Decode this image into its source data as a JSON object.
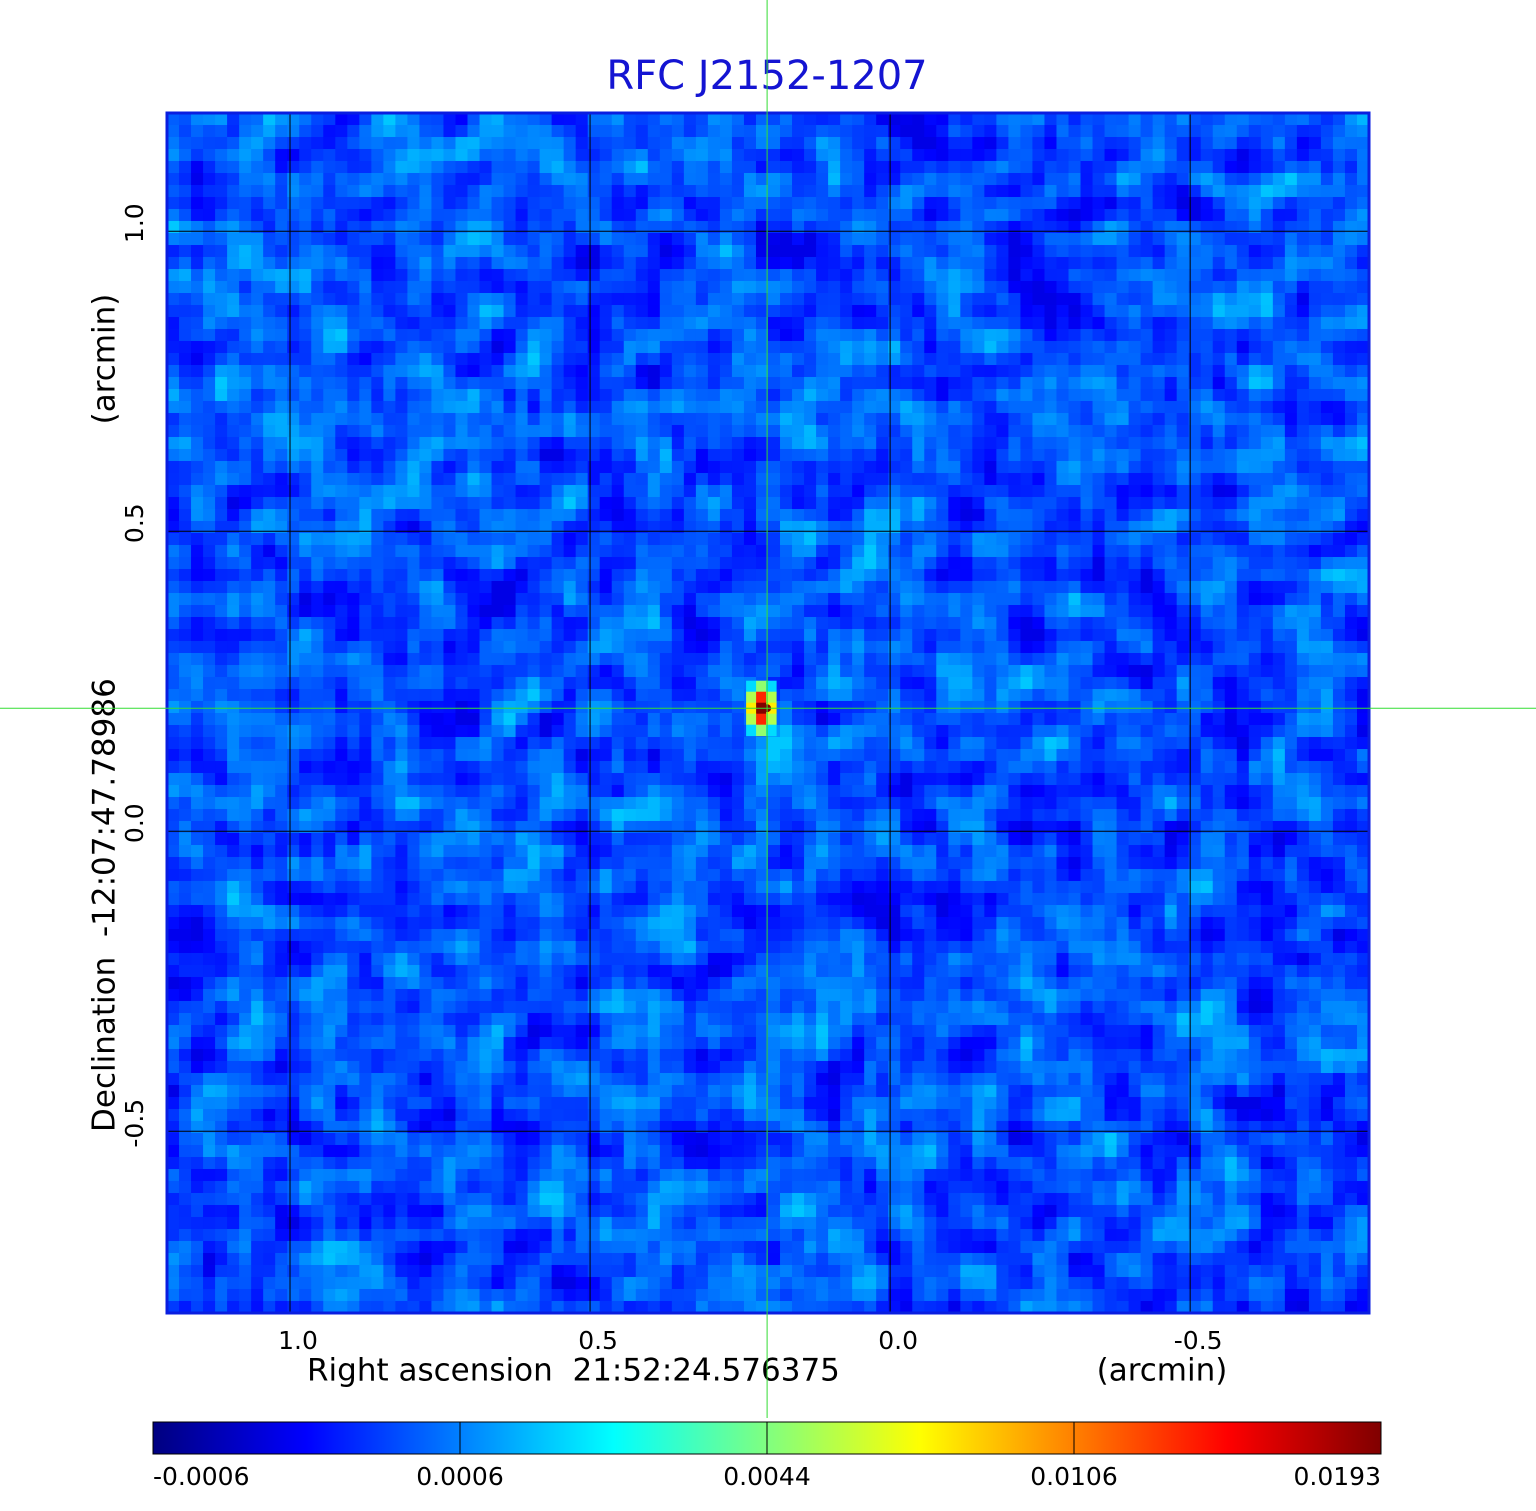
{
  "chart_data": {
    "type": "image",
    "title": "RFC J2152-1207",
    "xlabel": "Right ascension  21:52:24.576375",
    "xunit": "(arcmin)",
    "ylabel": "Declination  -12:07:47.78986",
    "yunit": "(arcmin)",
    "xlim": [
      1.205,
      -0.798
    ],
    "ylim": [
      -0.803,
      1.197
    ],
    "xticks": [
      {
        "value": 1,
        "label": "1.0"
      },
      0.5,
      {
        "value": 0,
        "label": "0.0"
      },
      -0.5
    ],
    "yticks": [
      {
        "value": -0.5,
        "label": "-0.5"
      },
      {
        "value": 0,
        "label": "0.0"
      },
      0.5,
      {
        "value": 1,
        "label": "1.0"
      }
    ],
    "grid": true,
    "source": {
      "x": 0.205,
      "y": 0.205,
      "peak": 0.0193
    },
    "colorbar": {
      "colormap": "jet",
      "ticks": [
        -0.0006,
        0.0006,
        0.0044,
        0.0106,
        0.0193
      ]
    }
  }
}
